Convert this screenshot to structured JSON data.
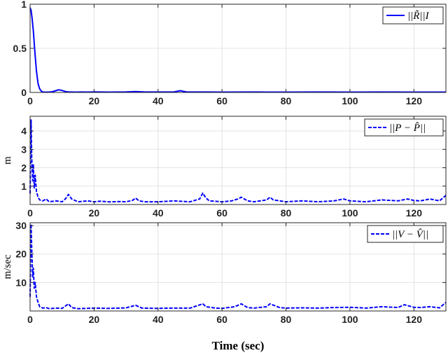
{
  "chart_data": [
    {
      "type": "line",
      "ylabel": "",
      "xlim": [
        0,
        130
      ],
      "ylim": [
        0,
        1
      ],
      "xticks": [
        0,
        20,
        40,
        60,
        80,
        100,
        120
      ],
      "xtick_labels": [
        "0",
        "20",
        "40",
        "60",
        "80",
        "100",
        "120"
      ],
      "yticks": [
        0,
        0.5,
        1
      ],
      "ytick_labels": [
        "0",
        "0.5",
        "1"
      ],
      "grid": true,
      "legend_placement": "top-right",
      "series": [
        {
          "name": "||R̃||I",
          "color": "#0000ff",
          "dash": "solid",
          "x": [
            0,
            0.3,
            0.6,
            1,
            1.5,
            2,
            2.5,
            3,
            3.5,
            4,
            5,
            6,
            7,
            8,
            9,
            10,
            11,
            12,
            14,
            16,
            18,
            20,
            25,
            30,
            33,
            36,
            40,
            45,
            47,
            48,
            49,
            55,
            60,
            70,
            80,
            90,
            100,
            110,
            120,
            130
          ],
          "y": [
            0.96,
            0.93,
            0.85,
            0.7,
            0.45,
            0.24,
            0.1,
            0.04,
            0.015,
            0.005,
            0.003,
            0.005,
            0.008,
            0.02,
            0.03,
            0.022,
            0.01,
            0.006,
            0.004,
            0.005,
            0.004,
            0.006,
            0.004,
            0.006,
            0.01,
            0.005,
            0.005,
            0.006,
            0.02,
            0.012,
            0.005,
            0.005,
            0.004,
            0.005,
            0.004,
            0.005,
            0.004,
            0.005,
            0.004,
            0.004
          ]
        }
      ]
    },
    {
      "type": "line",
      "ylabel": "m",
      "xlim": [
        0,
        130
      ],
      "ylim": [
        0,
        4.8
      ],
      "xticks": [
        0,
        20,
        40,
        60,
        80,
        100,
        120
      ],
      "xtick_labels": [
        "0",
        "20",
        "40",
        "60",
        "80",
        "100",
        "120"
      ],
      "yticks": [
        1,
        2,
        3,
        4
      ],
      "ytick_labels": [
        "1",
        "2",
        "3",
        "4"
      ],
      "grid": true,
      "legend_placement": "top-right",
      "series": [
        {
          "name": "||P − P̂||",
          "color": "#0000ff",
          "dash": "dashed",
          "x": [
            0,
            0.3,
            0.5,
            0.8,
            1,
            1.3,
            1.6,
            2,
            2.5,
            3,
            4,
            5,
            6,
            8,
            10,
            11,
            12,
            13,
            15,
            18,
            20,
            22,
            25,
            28,
            30,
            32,
            33,
            34,
            36,
            40,
            45,
            50,
            53,
            54,
            55,
            56,
            60,
            63,
            65,
            66,
            68,
            70,
            74,
            75,
            76,
            78,
            80,
            85,
            90,
            95,
            98,
            100,
            105,
            110,
            115,
            118,
            120,
            122,
            125,
            128,
            130
          ],
          "y": [
            0.6,
            4.6,
            2.6,
            1.3,
            2.2,
            0.9,
            1.6,
            0.7,
            0.4,
            0.25,
            0.2,
            0.3,
            0.15,
            0.2,
            0.15,
            0.3,
            0.55,
            0.3,
            0.15,
            0.2,
            0.15,
            0.18,
            0.14,
            0.16,
            0.15,
            0.22,
            0.35,
            0.2,
            0.15,
            0.15,
            0.2,
            0.15,
            0.3,
            0.62,
            0.35,
            0.2,
            0.15,
            0.2,
            0.3,
            0.4,
            0.2,
            0.15,
            0.25,
            0.4,
            0.25,
            0.2,
            0.15,
            0.2,
            0.15,
            0.2,
            0.3,
            0.2,
            0.15,
            0.25,
            0.2,
            0.3,
            0.22,
            0.2,
            0.3,
            0.2,
            0.5
          ]
        }
      ]
    },
    {
      "type": "line",
      "ylabel": "m/sec",
      "xlabel": "Time (sec)",
      "xlim": [
        0,
        130
      ],
      "ylim": [
        0,
        31
      ],
      "xticks": [
        0,
        20,
        40,
        60,
        80,
        100,
        120
      ],
      "xtick_labels": [
        "0",
        "20",
        "40",
        "60",
        "80",
        "100",
        "120"
      ],
      "yticks": [
        10,
        20,
        30
      ],
      "ytick_labels": [
        "10",
        "20",
        "30"
      ],
      "grid": true,
      "legend_placement": "top-right",
      "series": [
        {
          "name": "||V − V̂||",
          "color": "#0000ff",
          "dash": "dashed",
          "x": [
            0,
            0.3,
            0.5,
            0.8,
            1,
            1.3,
            1.6,
            2,
            2.5,
            3,
            4,
            5,
            6,
            8,
            10,
            12,
            13,
            15,
            20,
            25,
            30,
            33,
            35,
            40,
            45,
            50,
            54,
            55,
            58,
            60,
            64,
            66,
            68,
            70,
            74,
            75,
            78,
            80,
            85,
            90,
            95,
            100,
            105,
            110,
            115,
            117,
            120,
            122,
            125,
            128,
            130
          ],
          "y": [
            5,
            30.5,
            22,
            12,
            15,
            8,
            10,
            5,
            3,
            1.5,
            1,
            1.2,
            0.8,
            1,
            0.9,
            2.5,
            1.2,
            0.8,
            1,
            0.9,
            1.1,
            2,
            1,
            0.9,
            1,
            1,
            2.5,
            1.5,
            1,
            0.9,
            1.5,
            2.5,
            1.2,
            1,
            1.5,
            2.5,
            1.2,
            1,
            1.1,
            1,
            1.2,
            1.3,
            1,
            1.5,
            1.2,
            2.2,
            1.3,
            1.2,
            1.5,
            1.1,
            3
          ]
        }
      ]
    }
  ]
}
